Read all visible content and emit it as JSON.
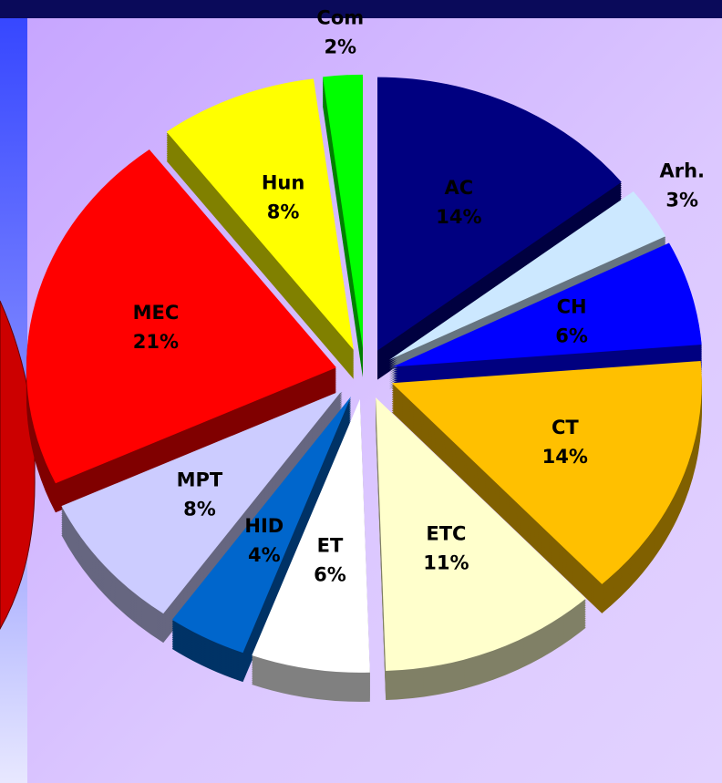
{
  "chart_data": {
    "type": "pie",
    "categories": [
      "AC",
      "Arh.",
      "CH",
      "CT",
      "ETC",
      "ET",
      "HID",
      "MPT",
      "MEC",
      "Hun",
      "Com"
    ],
    "values": [
      14,
      3,
      6,
      14,
      11,
      6,
      4,
      8,
      21,
      8,
      2
    ],
    "value_labels": [
      "14%",
      "3%",
      "6%",
      "14%",
      "11%",
      "6%",
      "4%",
      "8%",
      "21%",
      "8%",
      "2%"
    ],
    "colors": [
      "#000080",
      "#cce8ff",
      "#0000ff",
      "#ffc000",
      "#ffffcc",
      "#ffffff",
      "#0066cc",
      "#ccccff",
      "#ff0000",
      "#ffff00",
      "#00ff00"
    ]
  }
}
